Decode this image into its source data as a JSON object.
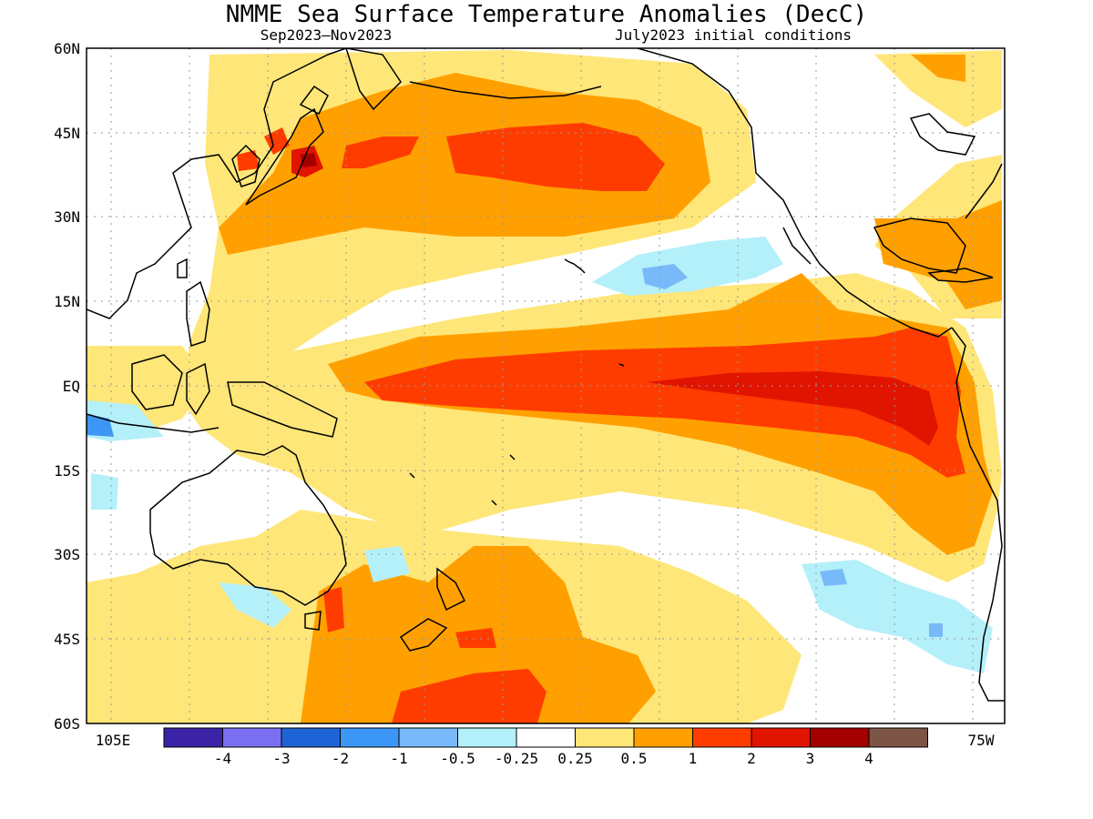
{
  "title": "NMME Sea Surface Temperature Anomalies (DecC)",
  "subtitle_left": "Sep2023–Nov2023",
  "subtitle_right": "July2023 initial conditions",
  "lat_ticks": [
    "60N",
    "45N",
    "30N",
    "15N",
    "EQ",
    "15S",
    "30S",
    "45S",
    "60S"
  ],
  "lon_label_left": "105E",
  "lon_label_right": "75W",
  "legend": {
    "labels": [
      "-4",
      "-3",
      "-2",
      "-1",
      "-0.5",
      "-0.25",
      "0.25",
      "0.5",
      "1",
      "2",
      "3",
      "4"
    ],
    "colors": [
      "#3b23a8",
      "#7a6ff0",
      "#1e64d6",
      "#3c96f5",
      "#78b9fa",
      "#b4f0fa",
      "#ffffff",
      "#ffe678",
      "#ffa000",
      "#ff3c00",
      "#e11400",
      "#a50000",
      "#7d5546"
    ]
  }
}
